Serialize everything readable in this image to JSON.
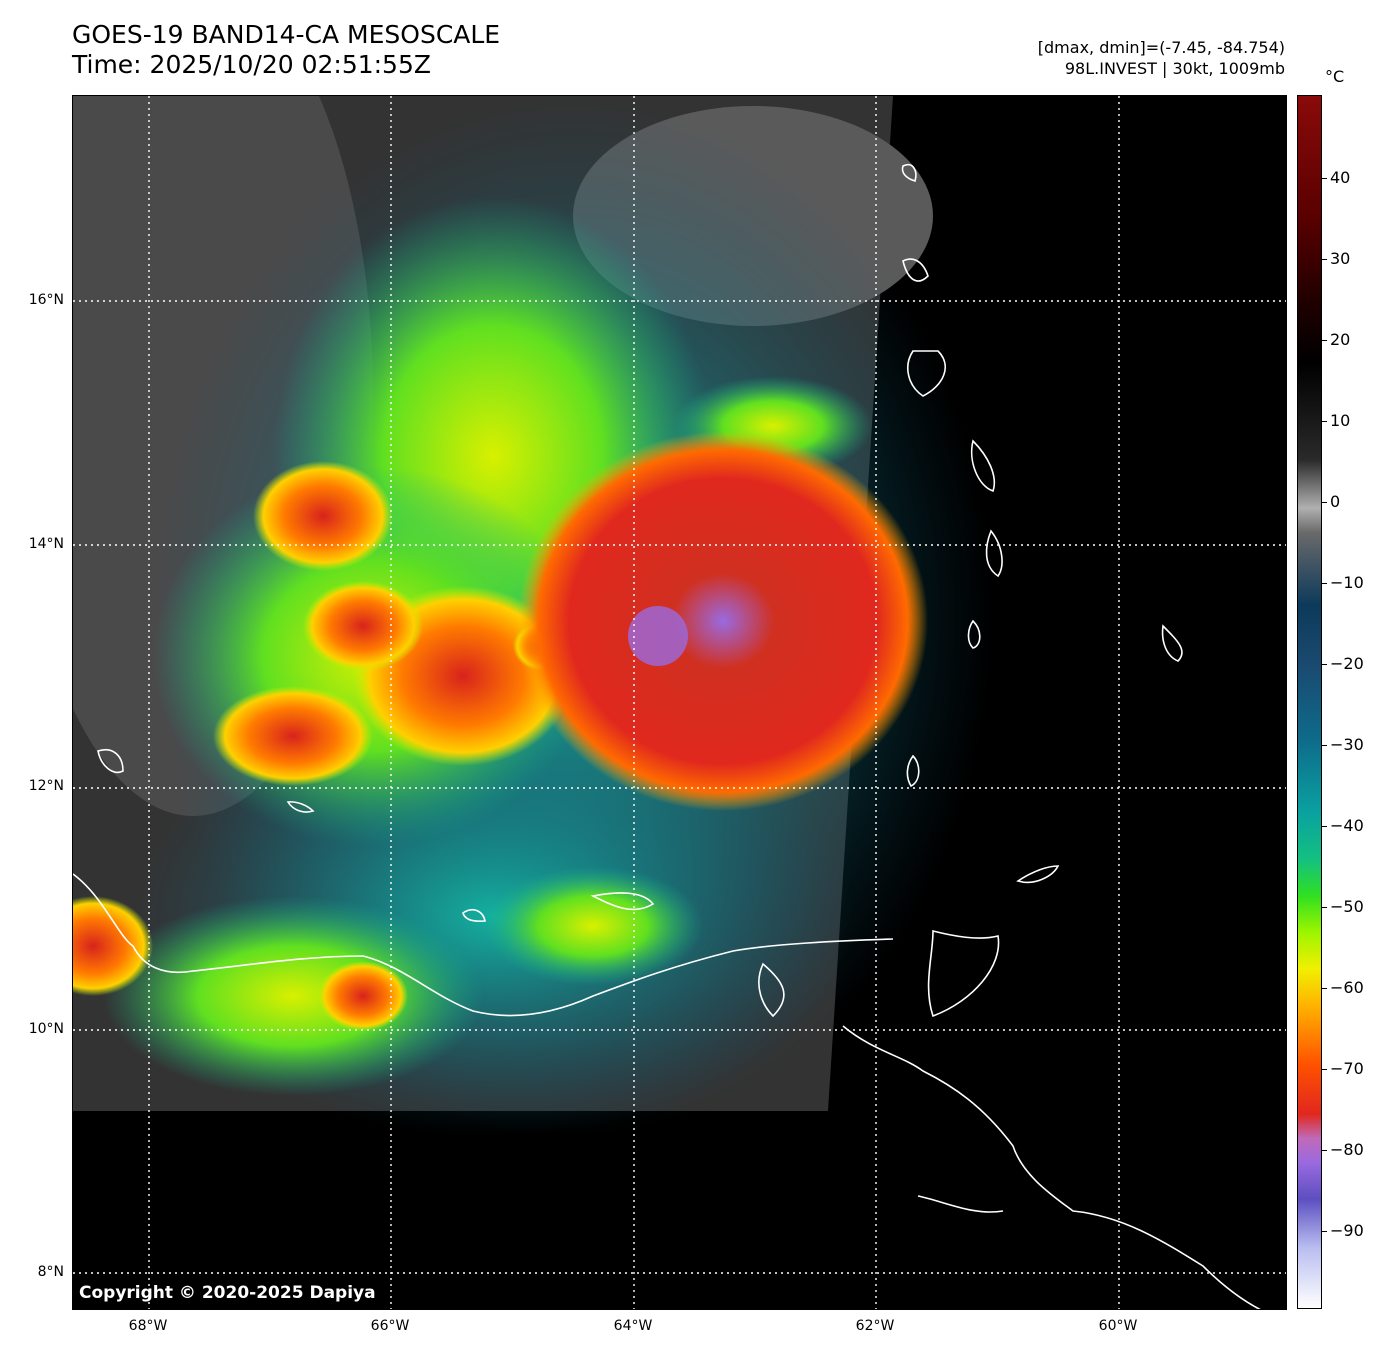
{
  "title": {
    "line1": "GOES-19 BAND14-CA MESOSCALE",
    "line2": "Time: 2025/10/20 02:51:55Z"
  },
  "info": {
    "line1": "[dmax, dmin]=(-7.45, -84.754)",
    "line2": "98L.INVEST | 30kt, 1009mb"
  },
  "map": {
    "lat_labels": [
      "16°N",
      "14°N",
      "12°N",
      "10°N",
      "8°N"
    ],
    "lon_labels": [
      "68°W",
      "66°W",
      "64°W",
      "62°W",
      "60°W"
    ],
    "copyright": "Copyright © 2020-2025 Dapiya"
  },
  "colorbar": {
    "unit": "°C",
    "ticks": [
      "40",
      "30",
      "20",
      "10",
      "0",
      "−10",
      "−20",
      "−30",
      "−40",
      "−50",
      "−60",
      "−70",
      "−80",
      "−90"
    ]
  }
}
